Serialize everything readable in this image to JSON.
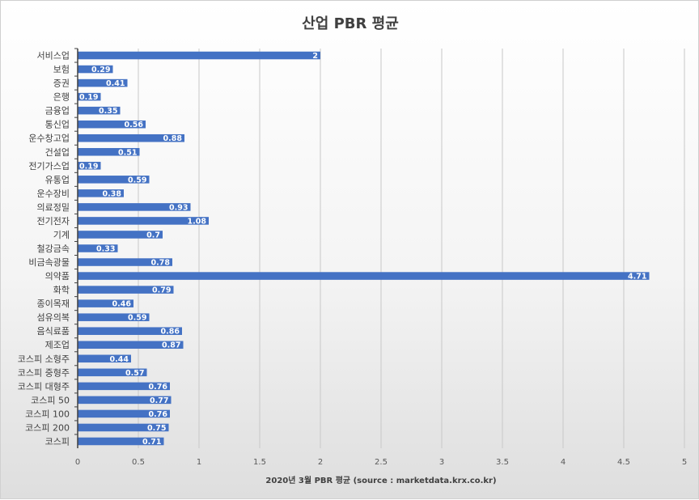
{
  "chart_data": {
    "type": "bar",
    "orientation": "horizontal",
    "title": "산업 PBR 평균",
    "xlabel": "2020년 3월 PBR 평균 (source : marketdata.krx.co.kr)",
    "ylabel": "",
    "xlim": [
      0,
      5
    ],
    "x_ticks": [
      "0",
      "0.5",
      "1",
      "1.5",
      "2",
      "2.5",
      "3",
      "3.5",
      "4",
      "4.5",
      "5"
    ],
    "grid": true,
    "legend": "none",
    "bar_color": "#4472C4",
    "categories": [
      "서비스업",
      "보험",
      "증권",
      "은행",
      "금융업",
      "통신업",
      "운수창고업",
      "건설업",
      "전기가스업",
      "유통업",
      "운수장비",
      "의료정밀",
      "전기전자",
      "기계",
      "철강금속",
      "비금속광물",
      "의약품",
      "화학",
      "종이목재",
      "섬유의복",
      "음식료품",
      "제조업",
      "코스피 소형주",
      "코스피 중형주",
      "코스피 대형주",
      "코스피 50",
      "코스피 100",
      "코스피 200",
      "코스피"
    ],
    "values": [
      2,
      0.29,
      0.41,
      0.19,
      0.35,
      0.56,
      0.88,
      0.51,
      0.19,
      0.59,
      0.38,
      0.93,
      1.08,
      0.7,
      0.33,
      0.78,
      4.71,
      0.79,
      0.46,
      0.59,
      0.86,
      0.87,
      0.44,
      0.57,
      0.76,
      0.77,
      0.76,
      0.75,
      0.71
    ]
  }
}
